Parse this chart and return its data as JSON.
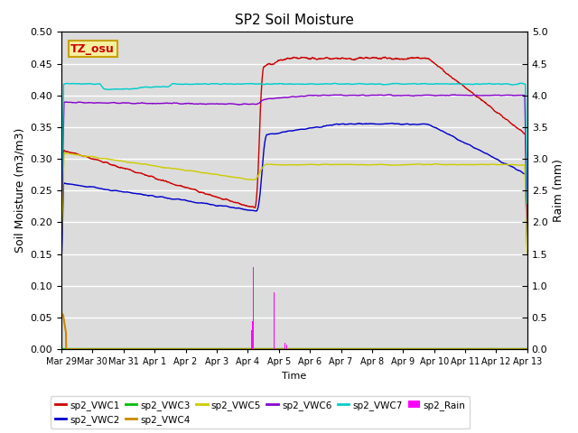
{
  "title": "SP2 Soil Moisture",
  "ylabel_left": "Soil Moisture (m3/m3)",
  "ylabel_right": "Raim (mm)",
  "xlabel": "Time",
  "ylim_left": [
    0.0,
    0.5
  ],
  "ylim_right": [
    0.0,
    5.0
  ],
  "background_color": "#dcdcdc",
  "watermark_text": "TZ_osu",
  "watermark_bg": "#f5f0a0",
  "watermark_border": "#c8a000",
  "series_colors": {
    "sp2_VWC1": "#cc0000",
    "sp2_VWC2": "#0000cc",
    "sp2_VWC3": "#00bb00",
    "sp2_VWC4": "#cc8800",
    "sp2_VWC5": "#cccc00",
    "sp2_VWC6": "#8800cc",
    "sp2_VWC7": "#00cccc",
    "sp2_Rain": "#ff00ff"
  },
  "tick_labels": [
    "Mar 29",
    "Mar 30",
    "Mar 31",
    "Apr 1",
    "Apr 2",
    "Apr 3",
    "Apr 4",
    "Apr 5",
    "Apr 6",
    "Apr 7",
    "Apr 8",
    "Apr 9",
    "Apr 10",
    "Apr 11",
    "Apr 12",
    "Apr 13"
  ],
  "yticks_left": [
    0.0,
    0.05,
    0.1,
    0.15,
    0.2,
    0.25,
    0.3,
    0.35,
    0.4,
    0.45,
    0.5
  ],
  "yticks_right": [
    0.0,
    0.5,
    1.0,
    1.5,
    2.0,
    2.5,
    3.0,
    3.5,
    4.0,
    4.5,
    5.0
  ],
  "num_days": 15
}
